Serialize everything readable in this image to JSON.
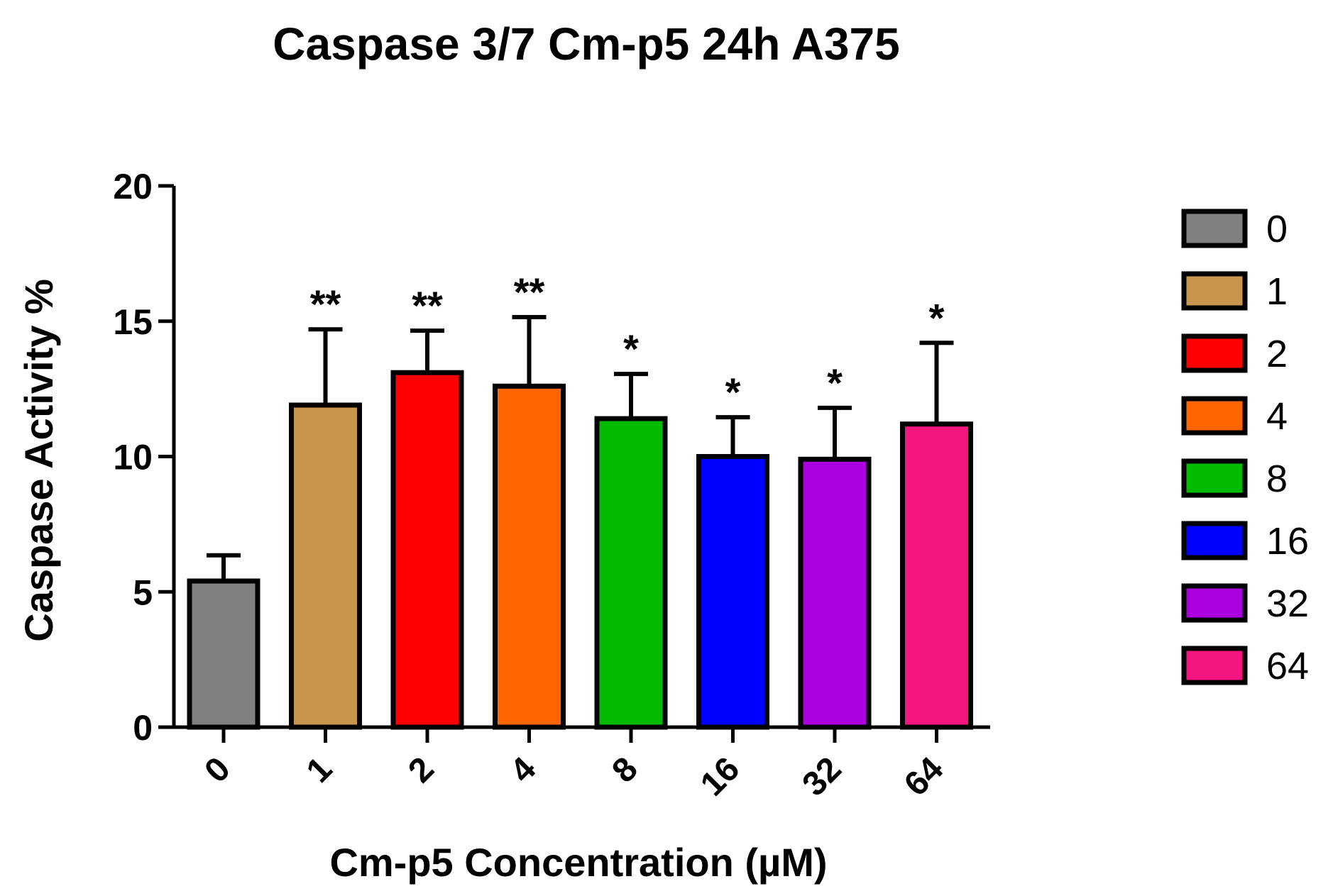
{
  "chart_data": {
    "type": "bar",
    "title": "Caspase 3/7 Cm-p5 24h A375",
    "xlabel": "Cm-p5 Concentration (µM)",
    "ylabel": "Caspase Activity %",
    "ylim": [
      0,
      20
    ],
    "yticks": [
      0,
      5,
      10,
      15,
      20
    ],
    "grid": false,
    "legend_position": "right",
    "categories": [
      "0",
      "1",
      "2",
      "4",
      "8",
      "16",
      "32",
      "64"
    ],
    "values": [
      5.4,
      11.9,
      13.1,
      12.6,
      11.4,
      10.0,
      9.9,
      11.2
    ],
    "errors": [
      0.95,
      2.8,
      1.55,
      2.55,
      1.65,
      1.45,
      1.9,
      3.0
    ],
    "significance": [
      "",
      "**",
      "**",
      "**",
      "*",
      "*",
      "*",
      "*"
    ],
    "colors": [
      "#808080",
      "#c8954f",
      "#ff0000",
      "#ff6600",
      "#00bb00",
      "#0000ff",
      "#aa00e0",
      "#f5157f"
    ],
    "legend": [
      "0",
      "1",
      "2",
      "4",
      "8",
      "16",
      "32",
      "64"
    ]
  }
}
